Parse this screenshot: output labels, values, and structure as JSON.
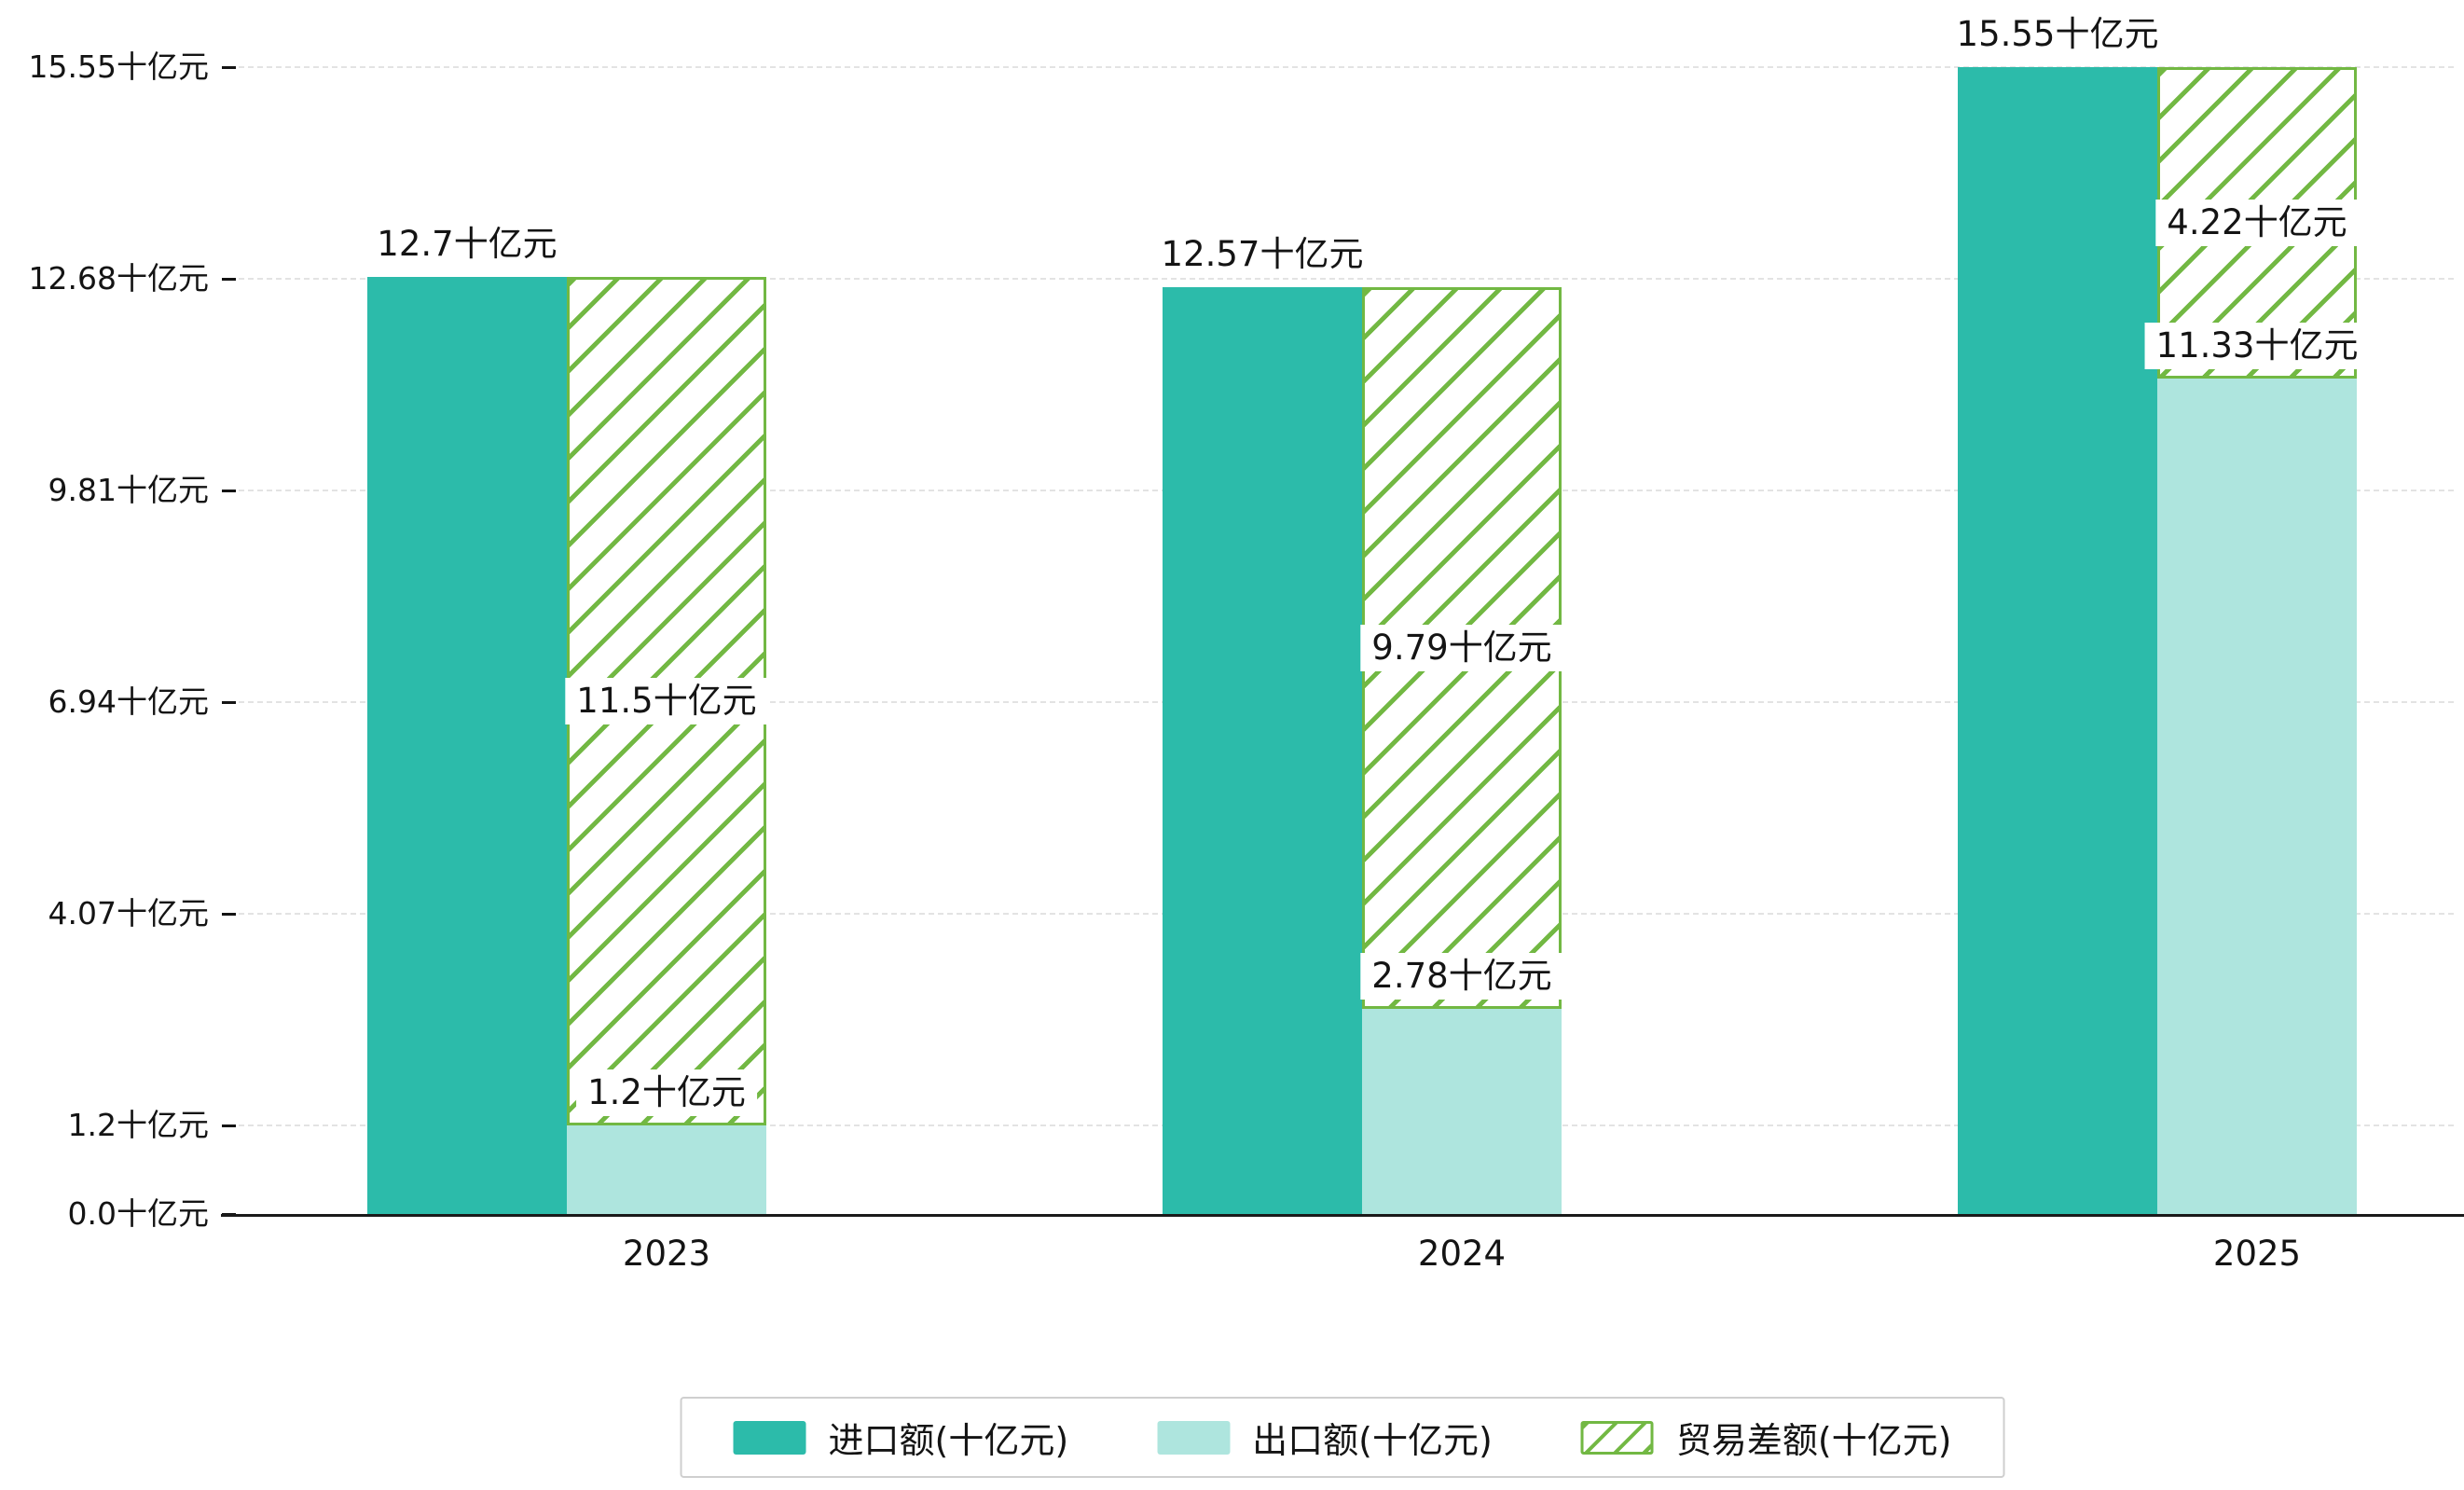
{
  "chart_data": {
    "type": "bar",
    "title": "",
    "categories": [
      "2023",
      "2024",
      "2025"
    ],
    "series": [
      {
        "name": "进口额(十亿元)",
        "key": "import",
        "color": "#2cbbaa",
        "values": [
          12.7,
          12.57,
          15.55
        ],
        "value_labels": [
          "12.7十亿元",
          "12.57十亿元",
          "15.55十亿元"
        ]
      },
      {
        "name": "出口额(十亿元)",
        "key": "export",
        "color": "#aee5de",
        "values": [
          1.2,
          2.78,
          11.33
        ],
        "value_labels": [
          "1.2十亿元",
          "2.78十亿元",
          "11.33十亿元"
        ]
      },
      {
        "name": "贸易差额(十亿元)",
        "key": "balance",
        "color": "#72b843",
        "style": "diagonal-hatch",
        "values": [
          11.5,
          9.79,
          4.22
        ],
        "value_labels": [
          "11.5十亿元",
          "9.79十亿元",
          "4.22十亿元"
        ],
        "render": "floating bar spanning from export level to import level"
      }
    ],
    "yticks": [
      0.0,
      1.2,
      4.07,
      6.94,
      9.81,
      12.68,
      15.55
    ],
    "ytick_labels": [
      "0.0十亿元",
      "1.2十亿元",
      "4.07十亿元",
      "6.94十亿元",
      "9.81十亿元",
      "12.68十亿元",
      "15.55十亿元"
    ],
    "ylim": [
      0,
      15.55
    ],
    "xlabel": "",
    "ylabel": "",
    "grid": "horizontal-dashed",
    "legend_position": "bottom-center"
  }
}
